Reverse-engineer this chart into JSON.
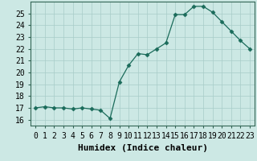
{
  "x": [
    0,
    1,
    2,
    3,
    4,
    5,
    6,
    7,
    8,
    9,
    10,
    11,
    12,
    13,
    14,
    15,
    16,
    17,
    18,
    19,
    20,
    21,
    22,
    23
  ],
  "y": [
    17.0,
    17.1,
    17.0,
    17.0,
    16.9,
    17.0,
    16.9,
    16.8,
    16.1,
    19.2,
    20.6,
    21.6,
    21.5,
    22.0,
    22.5,
    24.9,
    24.9,
    25.6,
    25.6,
    25.1,
    24.3,
    23.5,
    22.7,
    22.0
  ],
  "line_color": "#1a6b5a",
  "marker": "D",
  "marker_size": 2.5,
  "bg_color": "#cce8e4",
  "grid_color": "#a8ccc8",
  "xlabel": "Humidex (Indice chaleur)",
  "xlim": [
    -0.5,
    23.5
  ],
  "ylim": [
    15.5,
    26.0
  ],
  "yticks": [
    16,
    17,
    18,
    19,
    20,
    21,
    22,
    23,
    24,
    25
  ],
  "xtick_labels": [
    "0",
    "1",
    "2",
    "3",
    "4",
    "5",
    "6",
    "7",
    "8",
    "9",
    "10",
    "11",
    "12",
    "13",
    "14",
    "15",
    "16",
    "17",
    "18",
    "19",
    "20",
    "21",
    "22",
    "23"
  ],
  "tick_fontsize": 7,
  "xlabel_fontsize": 8
}
